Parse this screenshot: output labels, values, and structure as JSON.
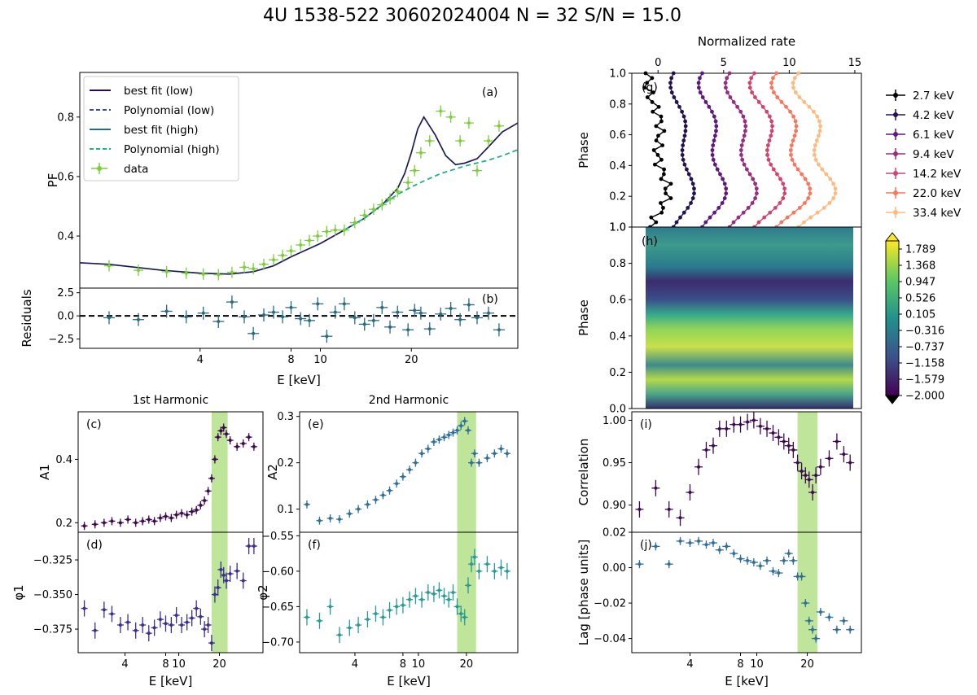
{
  "figure_title": "4U 1538-522 30602024004 N = 32 S/N = 15.0",
  "colors": {
    "low_fit": "#2d0a4e",
    "poly_low": "#3a4a9a",
    "high_fit": "#1f6e8c",
    "poly_high": "#22b08a",
    "data": "#7ccd3a",
    "green_band": "#bfe59a",
    "residual_pts": "#2a6a85",
    "A1_pts": "#3d0a4f",
    "phi1_pts": "#3b2f8f",
    "A2_pts": "#2f6f9a",
    "phi2_pts": "#2a9a94",
    "corr_pts": "#3d0a4f",
    "lag_pts": "#2f6f9a"
  },
  "chart_data": [
    {
      "id": "a",
      "panel_label": "(a)",
      "type": "line",
      "ylabel": "PF",
      "xscale": "log",
      "xlim": [
        1.6,
        45
      ],
      "ylim": [
        0.225,
        0.95
      ],
      "yticks": [
        0.4,
        0.6,
        0.8
      ],
      "ytick_labels": [
        "0.4",
        "0.6",
        "0.8"
      ],
      "legend_position": "upper-left",
      "legend": [
        "best fit (low)",
        "Polynomial (low)",
        "best fit (high)",
        "Polynomial (high)",
        "data"
      ],
      "data": {
        "x": [
          2.0,
          2.5,
          3.1,
          3.6,
          4.1,
          4.6,
          5.1,
          5.6,
          6.0,
          6.5,
          7.0,
          7.5,
          8.0,
          8.6,
          9.2,
          9.8,
          10.5,
          11.2,
          12.0,
          13.0,
          14.0,
          15.0,
          16.0,
          17.0,
          18.0,
          19.5,
          20.5,
          21.5,
          23.0,
          25.0,
          27.0,
          29.0,
          31.0,
          33.0,
          36.0,
          39.0
        ],
        "y": [
          0.3,
          0.285,
          0.28,
          0.275,
          0.272,
          0.27,
          0.278,
          0.295,
          0.29,
          0.305,
          0.32,
          0.335,
          0.35,
          0.37,
          0.385,
          0.4,
          0.415,
          0.42,
          0.42,
          0.445,
          0.47,
          0.49,
          0.505,
          0.525,
          0.55,
          0.58,
          0.62,
          0.68,
          0.72,
          0.82,
          0.8,
          0.72,
          0.78,
          0.62,
          0.72,
          0.77
        ]
      },
      "best_fit_low": {
        "x": [
          1.6,
          2,
          3,
          4,
          5,
          6,
          7,
          8,
          10,
          12,
          14,
          16,
          18,
          19,
          20,
          21,
          22,
          24,
          26,
          28,
          30,
          33,
          36,
          40,
          45
        ],
        "y": [
          0.31,
          0.305,
          0.285,
          0.275,
          0.272,
          0.28,
          0.3,
          0.33,
          0.375,
          0.42,
          0.46,
          0.505,
          0.56,
          0.61,
          0.68,
          0.76,
          0.8,
          0.74,
          0.67,
          0.64,
          0.645,
          0.66,
          0.7,
          0.75,
          0.78
        ]
      },
      "poly_high": {
        "x": [
          12,
          14,
          16,
          18,
          20,
          22,
          25,
          30,
          36,
          40,
          45
        ],
        "y": [
          0.42,
          0.46,
          0.505,
          0.54,
          0.565,
          0.585,
          0.61,
          0.635,
          0.655,
          0.67,
          0.69
        ]
      }
    },
    {
      "id": "b",
      "panel_label": "(b)",
      "type": "scatter",
      "ylabel": "Residuals",
      "xlabel": "E [keV]",
      "ylim": [
        -3.5,
        3.0
      ],
      "yticks": [
        -2.5,
        0.0,
        2.5
      ],
      "ytick_labels": [
        "−2.5",
        "0.0",
        "2.5"
      ],
      "xticks": [
        4,
        8,
        10,
        20
      ],
      "xtick_labels": [
        "4",
        "8",
        "10",
        "20"
      ],
      "x": [
        2.0,
        2.5,
        3.1,
        3.6,
        4.1,
        4.6,
        5.1,
        5.6,
        6.0,
        6.5,
        7.0,
        7.5,
        8.0,
        8.6,
        9.2,
        9.8,
        10.5,
        11.2,
        12.0,
        13.0,
        14.0,
        15.0,
        16.0,
        17.0,
        18.0,
        19.5,
        20.5,
        21.5,
        23.0,
        25.0,
        27.0,
        29.0,
        31.0,
        33.0,
        36.0,
        39.0
      ],
      "y": [
        -0.2,
        -0.4,
        0.5,
        -0.1,
        0.3,
        -0.6,
        1.5,
        -0.1,
        -1.9,
        0.1,
        0.4,
        -0.1,
        0.9,
        -0.3,
        -0.5,
        1.3,
        -2.2,
        0.4,
        1.3,
        -0.2,
        -0.9,
        -0.5,
        0.9,
        -1.2,
        0.4,
        -1.5,
        0.6,
        0.3,
        -1.4,
        0.2,
        0.8,
        -0.4,
        1.2,
        -0.2,
        0.3,
        -1.5
      ]
    },
    {
      "id": "c",
      "panel_label": "(c)",
      "title": "1st Harmonic",
      "type": "scatter",
      "ylabel": "A1",
      "xlim": [
        1.8,
        42
      ],
      "ylim": [
        0.17,
        0.55
      ],
      "yticks": [
        0.2,
        0.4
      ],
      "ytick_labels": [
        "0.2",
        "0.4"
      ],
      "band": [
        17.5,
        23.0
      ],
      "x": [
        2.0,
        2.4,
        2.8,
        3.2,
        3.7,
        4.2,
        4.8,
        5.4,
        6.0,
        6.6,
        7.3,
        8.0,
        8.8,
        9.6,
        10.5,
        11.5,
        12.5,
        13.5,
        14.5,
        15.5,
        16.5,
        17.5,
        18.5,
        19.5,
        20.5,
        21.5,
        22.5,
        24,
        27,
        30,
        33,
        36
      ],
      "y": [
        0.19,
        0.195,
        0.2,
        0.205,
        0.2,
        0.21,
        0.2,
        0.205,
        0.21,
        0.205,
        0.215,
        0.22,
        0.215,
        0.225,
        0.23,
        0.225,
        0.235,
        0.24,
        0.255,
        0.27,
        0.3,
        0.34,
        0.4,
        0.47,
        0.49,
        0.5,
        0.48,
        0.46,
        0.44,
        0.45,
        0.47,
        0.44
      ]
    },
    {
      "id": "d",
      "panel_label": "(d)",
      "type": "scatter",
      "ylabel": "φ1",
      "xlabel": "E [keV]",
      "xlim": [
        1.8,
        42
      ],
      "ylim": [
        -0.392,
        -0.305
      ],
      "yticks": [
        -0.375,
        -0.35,
        -0.325
      ],
      "ytick_labels": [
        "−0.375",
        "−0.350",
        "−0.325"
      ],
      "xticks": [
        4,
        8,
        10,
        20
      ],
      "xtick_labels": [
        "4",
        "8",
        "10",
        "20"
      ],
      "band": [
        17.5,
        23.0
      ],
      "x": [
        2.0,
        2.4,
        2.8,
        3.2,
        3.7,
        4.2,
        4.8,
        5.4,
        6.0,
        6.6,
        7.3,
        8.0,
        8.8,
        9.6,
        10.5,
        11.5,
        12.5,
        13.5,
        14.5,
        15.5,
        16.5,
        17.5,
        18.5,
        19.5,
        20.5,
        21.5,
        22.5,
        24,
        27,
        30,
        33,
        36
      ],
      "y": [
        -0.36,
        -0.376,
        -0.361,
        -0.364,
        -0.372,
        -0.37,
        -0.376,
        -0.372,
        -0.378,
        -0.374,
        -0.368,
        -0.371,
        -0.372,
        -0.365,
        -0.372,
        -0.37,
        -0.367,
        -0.36,
        -0.366,
        -0.375,
        -0.372,
        -0.385,
        -0.35,
        -0.345,
        -0.332,
        -0.336,
        -0.34,
        -0.335,
        -0.333,
        -0.34,
        -0.315,
        -0.315
      ]
    },
    {
      "id": "e",
      "panel_label": "(e)",
      "title": "2nd Harmonic",
      "type": "scatter",
      "ylabel": "A2",
      "xlim": [
        1.8,
        42
      ],
      "ylim": [
        0.05,
        0.31
      ],
      "yticks": [
        0.1,
        0.2,
        0.3
      ],
      "ytick_labels": [
        "0.1",
        "0.2",
        "0.3"
      ],
      "band": [
        17.5,
        23.0
      ],
      "x": [
        2.0,
        2.4,
        2.8,
        3.2,
        3.7,
        4.2,
        4.8,
        5.4,
        6.0,
        6.6,
        7.3,
        8.0,
        8.8,
        9.6,
        10.5,
        11.5,
        12.5,
        13.5,
        14.5,
        15.5,
        16.5,
        17.5,
        18.5,
        19.5,
        20.5,
        21.5,
        22.5,
        24,
        27,
        30,
        33,
        36
      ],
      "y": [
        0.11,
        0.075,
        0.08,
        0.078,
        0.09,
        0.1,
        0.11,
        0.12,
        0.13,
        0.14,
        0.155,
        0.17,
        0.185,
        0.2,
        0.22,
        0.23,
        0.245,
        0.25,
        0.255,
        0.26,
        0.265,
        0.27,
        0.28,
        0.29,
        0.27,
        0.2,
        0.22,
        0.2,
        0.21,
        0.22,
        0.23,
        0.22
      ]
    },
    {
      "id": "f",
      "panel_label": "(f)",
      "type": "scatter",
      "ylabel": "φ2",
      "xlabel": "E [keV]",
      "xlim": [
        1.8,
        42
      ],
      "ylim": [
        -0.715,
        -0.545
      ],
      "yticks": [
        -0.7,
        -0.65,
        -0.6,
        -0.55
      ],
      "ytick_labels": [
        "−0.70",
        "−0.65",
        "−0.60",
        "−0.55"
      ],
      "xticks": [
        4,
        8,
        10,
        20
      ],
      "xtick_labels": [
        "4",
        "8",
        "10",
        "20"
      ],
      "band": [
        17.5,
        23.0
      ],
      "x": [
        2.0,
        2.4,
        2.8,
        3.2,
        3.7,
        4.2,
        4.8,
        5.4,
        6.0,
        6.6,
        7.3,
        8.0,
        8.8,
        9.6,
        10.5,
        11.5,
        12.5,
        13.5,
        14.5,
        15.5,
        16.5,
        17.5,
        18.5,
        19.5,
        20.5,
        21.5,
        22.5,
        24,
        27,
        30,
        33,
        36
      ],
      "y": [
        -0.665,
        -0.67,
        -0.65,
        -0.69,
        -0.68,
        -0.676,
        -0.668,
        -0.66,
        -0.665,
        -0.655,
        -0.65,
        -0.648,
        -0.64,
        -0.635,
        -0.64,
        -0.63,
        -0.632,
        -0.627,
        -0.635,
        -0.64,
        -0.63,
        -0.65,
        -0.66,
        -0.665,
        -0.62,
        -0.59,
        -0.58,
        -0.6,
        -0.59,
        -0.6,
        -0.595,
        -0.6
      ]
    },
    {
      "id": "g",
      "panel_label": "(g)",
      "type": "line",
      "ylabel": "Phase",
      "top_xlabel": "Normalized rate",
      "ylim": [
        0.0,
        1.0
      ],
      "yticks": [
        0.2,
        0.4,
        0.6,
        0.8,
        1.0
      ],
      "ytick_labels": [
        "0.2",
        "0.4",
        "0.6",
        "0.8",
        "1.0"
      ],
      "bottom_left_label": "1.0",
      "xlim": [
        -2,
        15.5
      ],
      "xticks": [
        0,
        5,
        10,
        15
      ],
      "xtick_labels": [
        "0",
        "5",
        "10",
        "15"
      ],
      "legend_position": "right",
      "series": [
        {
          "name": "2.7 keV",
          "color": "#000000",
          "offset": 0.0
        },
        {
          "name": "4.2 keV",
          "color": "#231151",
          "offset": 1.9
        },
        {
          "name": "6.1 keV",
          "color": "#5f187f",
          "offset": 4.2
        },
        {
          "name": "9.4 keV",
          "color": "#982d80",
          "offset": 6.4
        },
        {
          "name": "14.2 keV",
          "color": "#d3436e",
          "offset": 8.4
        },
        {
          "name": "22.0 keV",
          "color": "#f8765c",
          "offset": 10.2
        },
        {
          "name": "33.4 keV",
          "color": "#febb81",
          "offset": 12.0
        }
      ]
    },
    {
      "id": "h",
      "panel_label": "(h)",
      "type": "heatmap",
      "ylabel": "Phase",
      "ylim": [
        0.0,
        1.0
      ],
      "yticks": [
        0.0,
        0.2,
        0.4,
        0.6,
        0.8,
        1.0
      ],
      "ytick_labels": [
        "0.0",
        "0.2",
        "0.4",
        "0.6",
        "0.8",
        "1.0"
      ],
      "colorbar": {
        "min": -2.0,
        "max": 2.0,
        "tick_labels": [
          "−2.000",
          "−1.579",
          "−1.158",
          "−0.737",
          "−0.316",
          "0.105",
          "0.526",
          "0.947",
          "1.368",
          "1.789"
        ]
      }
    },
    {
      "id": "i",
      "panel_label": "(i)",
      "type": "scatter",
      "ylabel": "Correlation",
      "xlim": [
        1.8,
        42
      ],
      "ylim": [
        0.868,
        1.01
      ],
      "yticks": [
        0.9,
        0.95,
        1.0
      ],
      "ytick_labels": [
        "0.90",
        "0.95",
        "1.00"
      ],
      "band": [
        17.5,
        23.0
      ],
      "x": [
        2.0,
        2.5,
        3.0,
        3.5,
        4.0,
        4.5,
        5.0,
        5.5,
        6.0,
        6.6,
        7.3,
        8.0,
        8.8,
        9.6,
        10.5,
        11.5,
        12.5,
        13.5,
        14.5,
        15.5,
        16.5,
        17.5,
        18.5,
        19.5,
        20.5,
        21.5,
        22.5,
        24,
        27,
        30,
        33,
        36
      ],
      "y": [
        0.895,
        0.92,
        0.895,
        0.885,
        0.915,
        0.945,
        0.965,
        0.97,
        0.99,
        0.99,
        0.995,
        0.995,
        0.998,
        1.0,
        0.993,
        0.99,
        0.985,
        0.98,
        0.975,
        0.97,
        0.965,
        0.95,
        0.94,
        0.935,
        0.93,
        0.915,
        0.935,
        0.945,
        0.955,
        0.975,
        0.96,
        0.95
      ]
    },
    {
      "id": "j",
      "panel_label": "(j)",
      "type": "scatter",
      "ylabel": "Lag [phase units]",
      "xlabel": "E [keV]",
      "xlim": [
        1.8,
        42
      ],
      "ylim": [
        -0.048,
        0.02
      ],
      "yticks": [
        -0.04,
        -0.02,
        0.0,
        0.02
      ],
      "ytick_labels": [
        "−0.04",
        "−0.02",
        "0.00",
        "0.02"
      ],
      "xticks": [
        4,
        8,
        10,
        20
      ],
      "xtick_labels": [
        "4",
        "8",
        "10",
        "20"
      ],
      "band": [
        17.5,
        23.0
      ],
      "x": [
        2.0,
        2.5,
        3.0,
        3.5,
        4.0,
        4.5,
        5.0,
        5.5,
        6.0,
        6.6,
        7.3,
        8.0,
        8.8,
        9.6,
        10.5,
        11.5,
        12.5,
        13.5,
        14.5,
        15.5,
        16.5,
        17.5,
        18.5,
        19.5,
        20.5,
        21.5,
        22.5,
        24,
        27,
        30,
        33,
        36
      ],
      "y": [
        0.002,
        0.012,
        0.002,
        0.015,
        0.014,
        0.015,
        0.013,
        0.014,
        0.01,
        0.012,
        0.008,
        0.005,
        0.004,
        0.003,
        0.001,
        0.004,
        -0.002,
        -0.003,
        0.004,
        0.008,
        0.004,
        -0.005,
        -0.005,
        -0.02,
        -0.03,
        -0.035,
        -0.04,
        -0.025,
        -0.028,
        -0.035,
        -0.03,
        -0.035
      ]
    }
  ]
}
